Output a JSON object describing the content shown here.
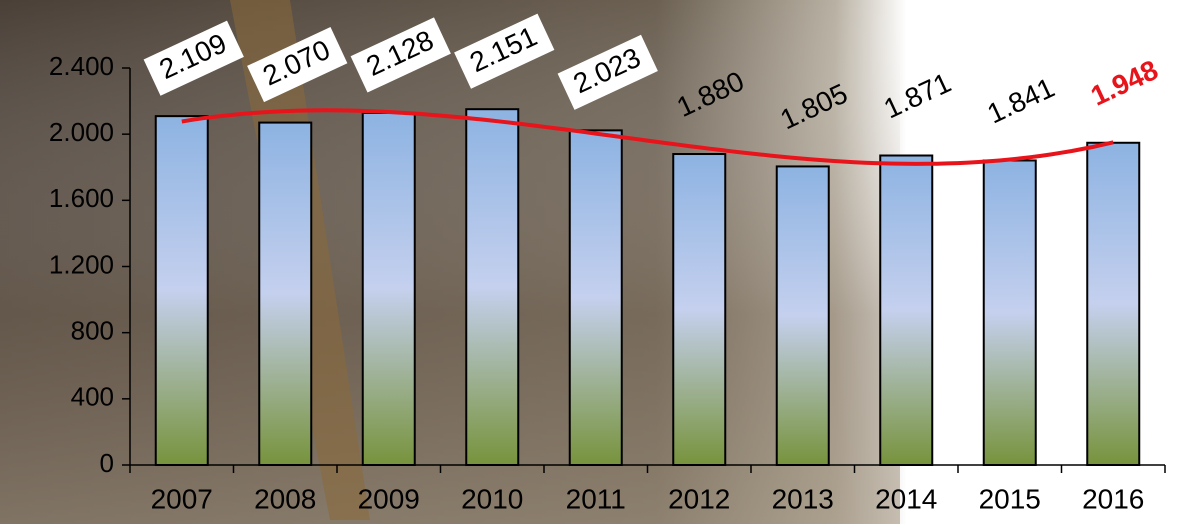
{
  "chart_data": {
    "type": "bar",
    "categories": [
      "2007",
      "2008",
      "2009",
      "2010",
      "2011",
      "2012",
      "2013",
      "2014",
      "2015",
      "2016"
    ],
    "values": [
      2109,
      2070,
      2128,
      2151,
      2023,
      1880,
      1805,
      1871,
      1841,
      1948
    ],
    "value_labels": [
      "2.109",
      "2.070",
      "2.128",
      "2.151",
      "2.023",
      "1.880",
      "1.805",
      "1.871",
      "1.841",
      "1.948"
    ],
    "value_label_colors": [
      "#000000",
      "#000000",
      "#000000",
      "#000000",
      "#000000",
      "#000000",
      "#000000",
      "#000000",
      "#000000",
      "#e8141b"
    ],
    "value_label_boxes": [
      true,
      true,
      true,
      true,
      true,
      false,
      false,
      false,
      false,
      false
    ],
    "ylim": [
      0,
      2400
    ],
    "yticks": [
      0,
      400,
      800,
      {
        "value": 1200,
        "label": "1.200"
      },
      {
        "value": 1600,
        "label": "1.600"
      },
      {
        "value": 2000,
        "label": "2.000"
      },
      {
        "value": 2400,
        "label": "2.400"
      }
    ],
    "bar_gradient": [
      "#8db3e2",
      "#c5d0ee",
      "#77933c"
    ],
    "trendline": {
      "kind": "polynomial",
      "order": 3,
      "color": "#e8141b"
    },
    "grid": false
  }
}
